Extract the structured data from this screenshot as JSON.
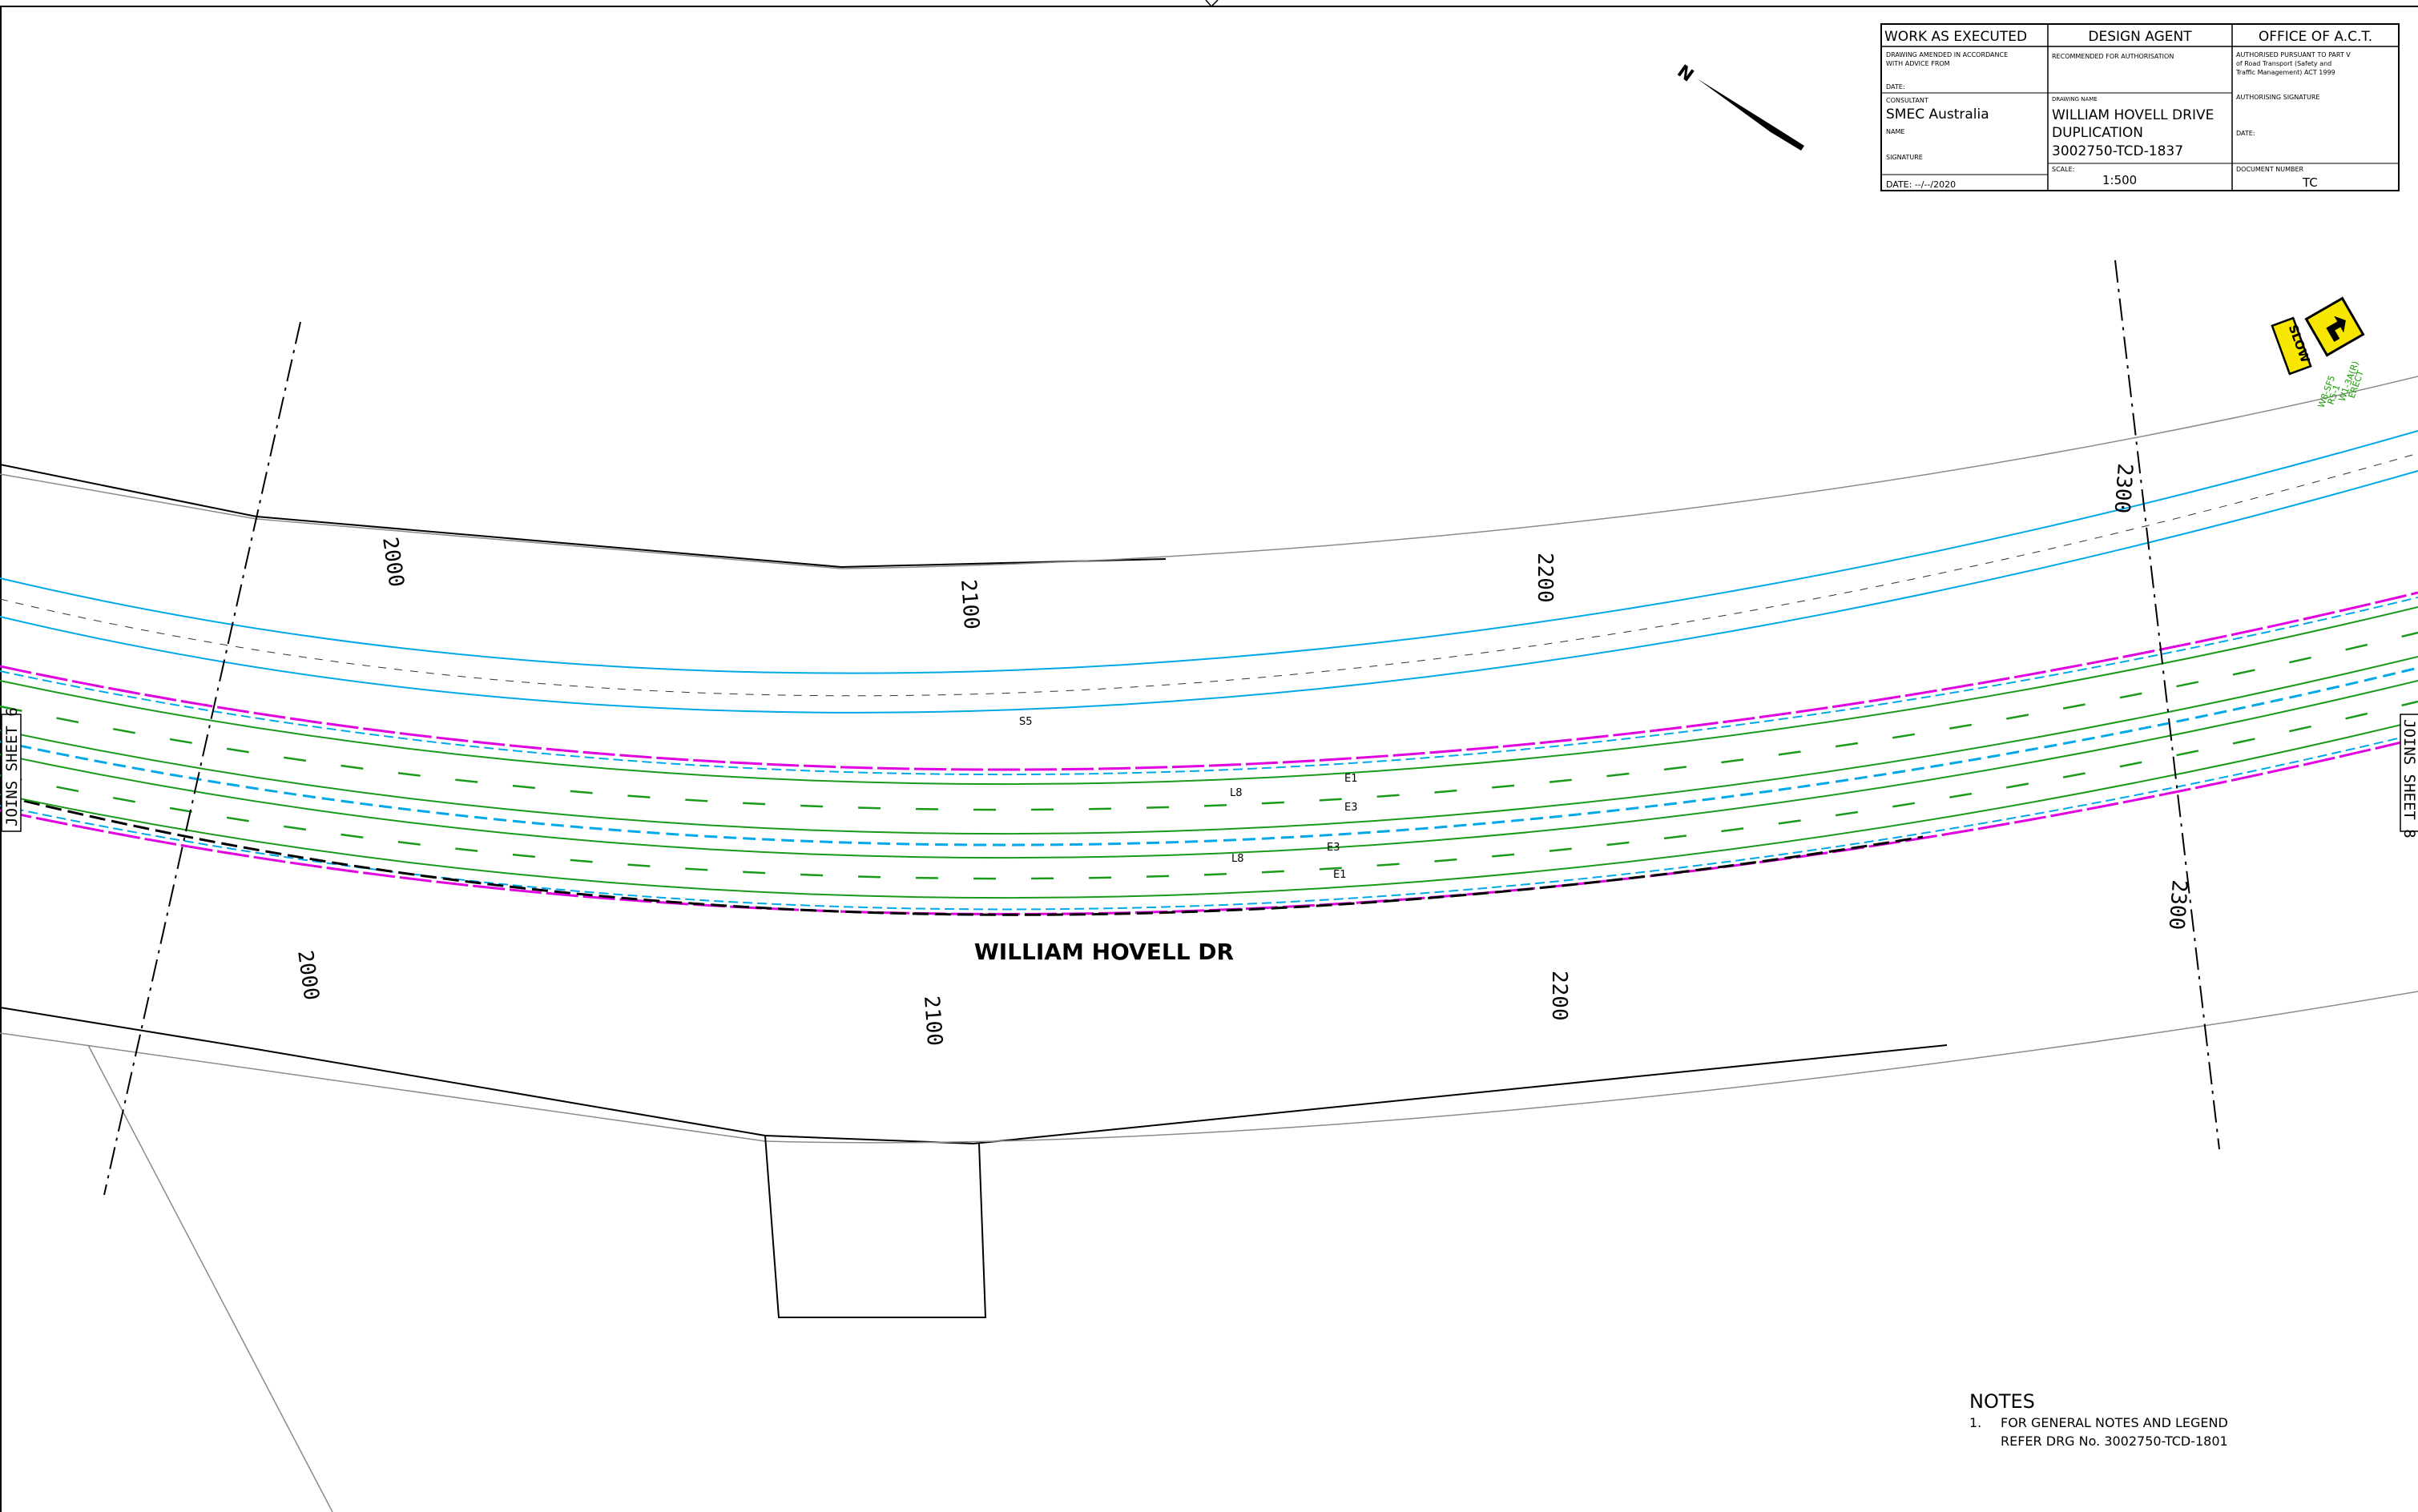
{
  "title_block": {
    "wae_title": "WORK AS EXECUTED",
    "amended_note_1": "DRAWING AMENDED IN ACCORDANCE",
    "amended_note_2": "WITH ADVICE FROM",
    "date_label": "DATE:",
    "consultant_label": "CONSULTANT",
    "consultant": "SMEC Australia",
    "name_label": "NAME",
    "signature_label": "SIGNATURE",
    "wae_date": "DATE: --/--/2020",
    "design_agent_title": "DESIGN   AGENT",
    "recommended": "RECOMMENDED FOR AUTHORISATION",
    "drawing_name_label": "DRAWING NAME",
    "drawing_name_1": "WILLIAM HOVELL DRIVE",
    "drawing_name_2": "DUPLICATION",
    "drawing_number": "3002750-TCD-1837",
    "scale_label": "SCALE:",
    "scale": "1:500",
    "office_title": "OFFICE OF A.C.T.",
    "authorised_1": "AUTHORISED PURSUANT TO PART V",
    "authorised_2": "of Road Transport (Safety and",
    "authorised_3": "Traffic Management) ACT 1999",
    "authorising_signature": "AUTHORISING SIGNATURE",
    "office_date": "DATE:",
    "document_number_label": "DOCUMENT NUMBER",
    "document_number": "TC"
  },
  "plan": {
    "road_name": "WILLIAM HOVELL DR",
    "north_label": "N",
    "joins_left": "JOINS SHEET 6",
    "joins_right": "JOINS SHEET 8",
    "chainages_top": [
      "2000",
      "2100",
      "2200",
      "2300"
    ],
    "chainages_bottom": [
      "2000",
      "2100",
      "2200",
      "2300"
    ],
    "line_codes": [
      "S5",
      "E1",
      "L8",
      "E3",
      "E3",
      "L8",
      "E1"
    ],
    "sign_slow": "SLOW",
    "sign_text": [
      "ERECT",
      "W1-3A(R)",
      "R5-1",
      "W8-SF5"
    ],
    "colors": {
      "kerb": "#000000",
      "boundary": "#888888",
      "shoulder": "#00a8e8",
      "edge_line": "#e000e0",
      "lane_line": "#1a9a1a",
      "median": "#00a8e8",
      "sign": "#f6e600"
    }
  },
  "notes": {
    "heading": "NOTES",
    "items": [
      {
        "num": "1.",
        "line1": "FOR GENERAL NOTES AND LEGEND",
        "line2": "REFER DRG No. 3002750-TCD-1801"
      }
    ]
  }
}
